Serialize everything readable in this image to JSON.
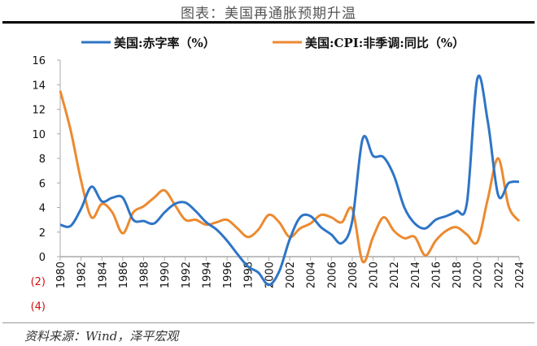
{
  "title": "图表：美国再通胀预期升温",
  "source": "资料来源：Wind，泽平宏观",
  "chart_data": {
    "type": "line",
    "title": "",
    "xlabel": "",
    "ylabel": "",
    "ylim": [
      -4,
      16
    ],
    "yticks": [
      16,
      14,
      12,
      10,
      8,
      6,
      4,
      2,
      0,
      -2,
      -4
    ],
    "ytick_labels": [
      "16",
      "14",
      "12",
      "10",
      "8",
      "6",
      "4",
      "2",
      "0",
      "(2)",
      "(4)"
    ],
    "negative_tick_color": "#d01010",
    "xticks": [
      "1980",
      "1982",
      "1984",
      "1986",
      "1988",
      "1990",
      "1992",
      "1994",
      "1996",
      "1998",
      "2000",
      "2002",
      "2004",
      "2006",
      "2008",
      "2010",
      "2012",
      "2014",
      "2016",
      "2018",
      "2020",
      "2022",
      "2024"
    ],
    "x": [
      1980,
      1981,
      1982,
      1983,
      1984,
      1985,
      1986,
      1987,
      1988,
      1989,
      1990,
      1991,
      1992,
      1993,
      1994,
      1995,
      1996,
      1997,
      1998,
      1999,
      2000,
      2001,
      2002,
      2003,
      2004,
      2005,
      2006,
      2007,
      2008,
      2009,
      2010,
      2011,
      2012,
      2013,
      2014,
      2015,
      2016,
      2017,
      2018,
      2019,
      2020,
      2021,
      2022,
      2023,
      2024
    ],
    "legend_position": "top",
    "grid": false,
    "series": [
      {
        "name": "美国:赤字率（%）",
        "color": "#2e75c6",
        "values": [
          2.6,
          2.5,
          3.9,
          5.7,
          4.5,
          4.8,
          4.8,
          3.0,
          2.9,
          2.7,
          3.6,
          4.3,
          4.4,
          3.7,
          2.8,
          2.2,
          1.3,
          0.2,
          -0.8,
          -1.3,
          -2.3,
          -1.2,
          1.4,
          3.2,
          3.3,
          2.4,
          1.8,
          1.1,
          2.9,
          9.6,
          8.2,
          8.1,
          6.6,
          4.0,
          2.7,
          2.3,
          3.0,
          3.3,
          3.7,
          4.4,
          14.5,
          11.0,
          5.0,
          6.0,
          6.1
        ]
      },
      {
        "name": "美国:CPI:非季调:同比（%）",
        "color": "#ec8a30",
        "values": [
          13.5,
          10.3,
          6.2,
          3.2,
          4.3,
          3.6,
          1.9,
          3.6,
          4.1,
          4.8,
          5.4,
          4.2,
          3.0,
          3.0,
          2.6,
          2.8,
          3.0,
          2.3,
          1.6,
          2.2,
          3.4,
          2.8,
          1.6,
          2.3,
          2.7,
          3.4,
          3.2,
          2.8,
          3.9,
          -0.4,
          1.6,
          3.2,
          2.1,
          1.5,
          1.6,
          0.1,
          1.3,
          2.1,
          2.4,
          1.8,
          1.2,
          4.7,
          8.0,
          4.1,
          2.9
        ]
      }
    ]
  }
}
